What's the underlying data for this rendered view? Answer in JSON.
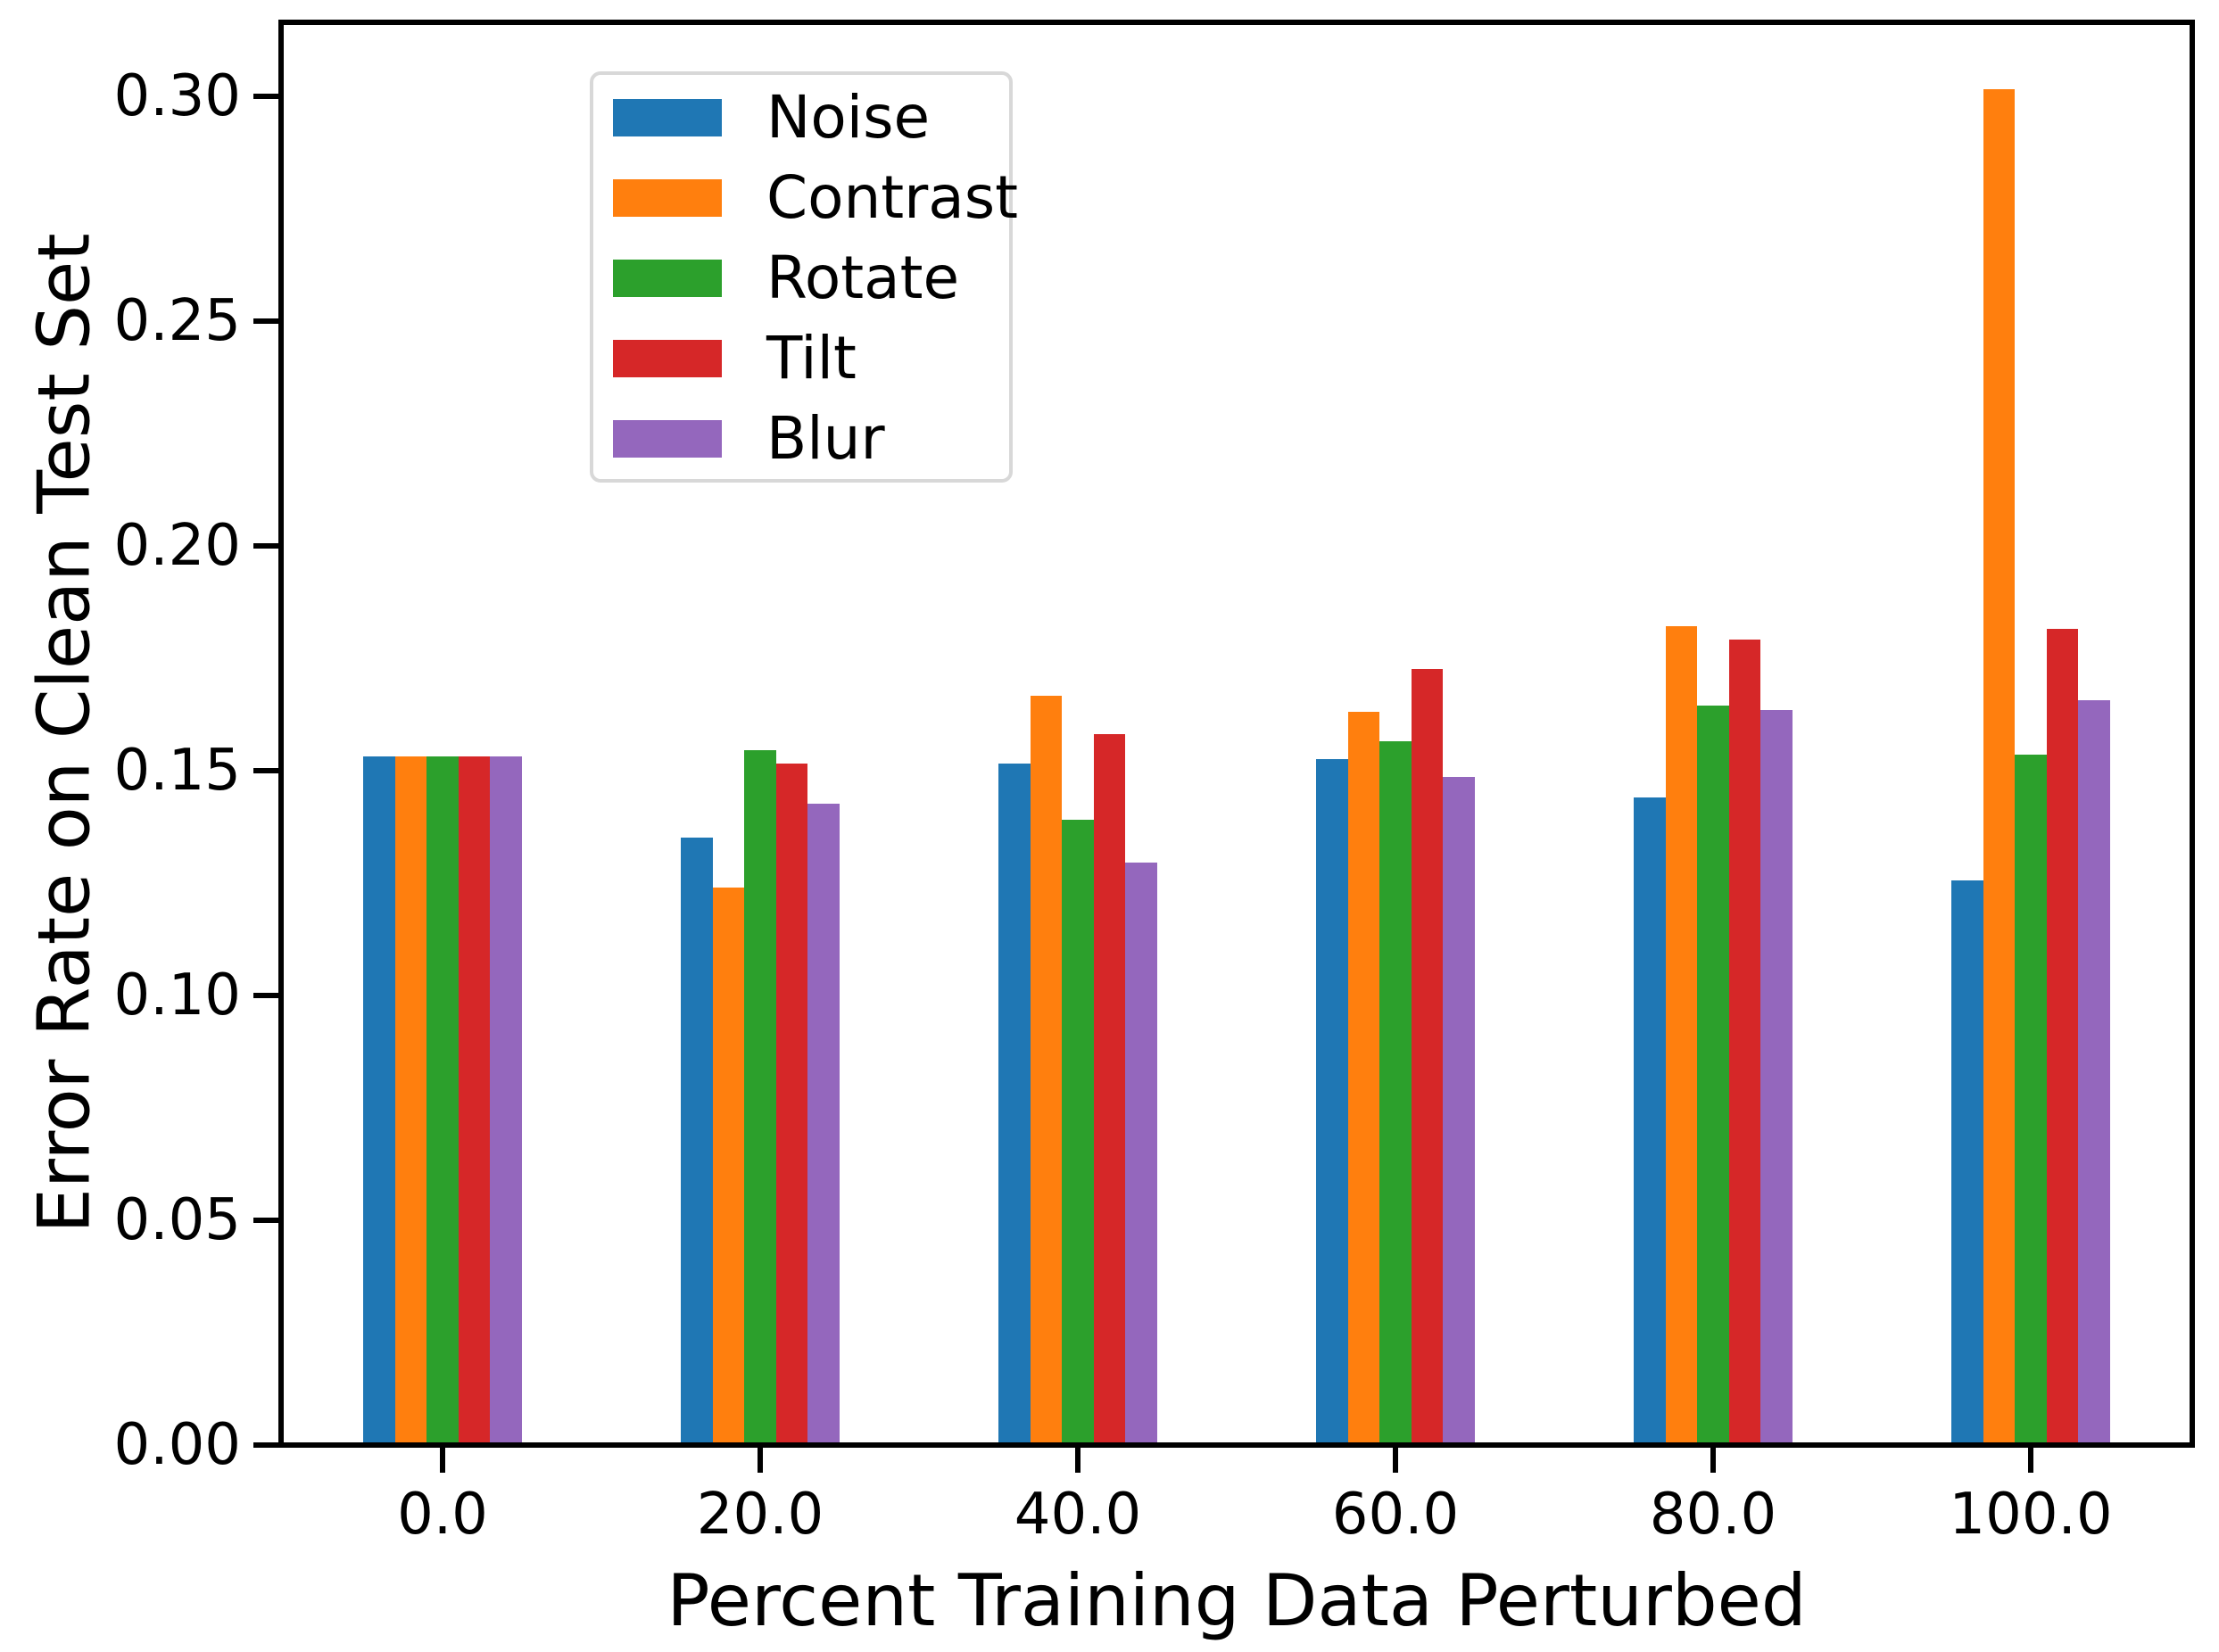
{
  "chart_data": {
    "type": "bar",
    "title": "",
    "xlabel": "Percent Training Data Perturbed",
    "ylabel": "Error Rate on Clean Test Set",
    "categories": [
      "0.0",
      "20.0",
      "40.0",
      "60.0",
      "80.0",
      "100.0"
    ],
    "series": [
      {
        "name": "Noise",
        "color": "#1f77b4",
        "values": [
          0.1525,
          0.1345,
          0.151,
          0.152,
          0.1435,
          0.125
        ]
      },
      {
        "name": "Contrast",
        "color": "#ff7f0e",
        "values": [
          0.1525,
          0.1235,
          0.166,
          0.1625,
          0.1815,
          0.301
        ]
      },
      {
        "name": "Rotate",
        "color": "#2ca02c",
        "values": [
          0.1525,
          0.154,
          0.1385,
          0.156,
          0.164,
          0.153
        ]
      },
      {
        "name": "Tilt",
        "color": "#d62728",
        "values": [
          0.1525,
          0.151,
          0.1575,
          0.172,
          0.1785,
          0.181
        ]
      },
      {
        "name": "Blur",
        "color": "#9467bd",
        "values": [
          0.1525,
          0.142,
          0.129,
          0.148,
          0.163,
          0.165
        ]
      }
    ],
    "yticks": [
      "0.00",
      "0.05",
      "0.10",
      "0.15",
      "0.20",
      "0.25",
      "0.30"
    ],
    "ytick_values": [
      0.0,
      0.05,
      0.1,
      0.15,
      0.2,
      0.25,
      0.3
    ],
    "ylim": [
      0,
      0.3165
    ],
    "legend_position": "upper left",
    "grid": false,
    "axis_color": "#000000",
    "background_color": "#ffffff"
  }
}
